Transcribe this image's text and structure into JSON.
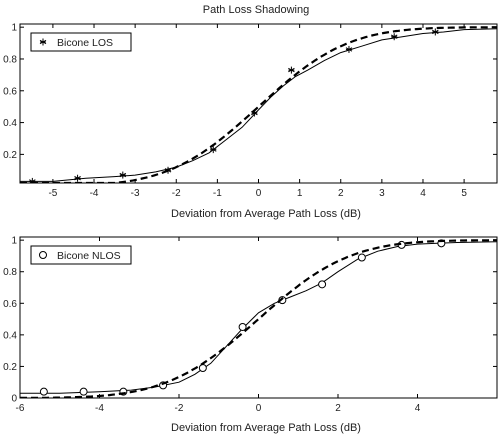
{
  "chart_data": [
    {
      "type": "line",
      "title": "Path Loss Shadowing",
      "xlabel": "Deviation from Average Path Loss (dB)",
      "ylabel": "",
      "xlim": [
        -5.8,
        5.8
      ],
      "ylim": [
        0.02,
        1.02
      ],
      "xticks": [
        -5,
        -4,
        -3,
        -2,
        -1,
        0,
        1,
        2,
        3,
        4,
        5
      ],
      "yticks": [
        0.2,
        0.4,
        0.6,
        0.8,
        1
      ],
      "legend": {
        "position": "top-left",
        "entries": [
          {
            "label": "Bicone LOS",
            "marker": "asterisk"
          }
        ]
      },
      "grid": false,
      "series": [
        {
          "name": "Bicone LOS",
          "style": "solid-with-markers",
          "marker": "asterisk",
          "x": [
            -5.8,
            -5.0,
            -4.2,
            -3.5,
            -3.0,
            -2.5,
            -2.0,
            -1.6,
            -1.2,
            -0.8,
            -0.4,
            0.0,
            0.3,
            0.6,
            0.9,
            1.2,
            1.6,
            2.0,
            2.5,
            3.0,
            3.5,
            4.0,
            4.5,
            5.0,
            5.8
          ],
          "y": [
            0.03,
            0.03,
            0.05,
            0.06,
            0.07,
            0.09,
            0.12,
            0.16,
            0.21,
            0.29,
            0.37,
            0.48,
            0.56,
            0.63,
            0.69,
            0.73,
            0.79,
            0.84,
            0.88,
            0.92,
            0.94,
            0.96,
            0.97,
            0.985,
            0.99
          ],
          "markers_x": [
            -5.5,
            -4.4,
            -3.3,
            -2.2,
            -1.1,
            -0.1,
            0.8,
            2.2,
            3.3,
            4.3
          ],
          "markers_y": [
            0.03,
            0.05,
            0.07,
            0.1,
            0.23,
            0.46,
            0.73,
            0.86,
            0.94,
            0.97
          ]
        },
        {
          "name": "",
          "style": "dashed",
          "type": "gaussian-cdf",
          "mean": 0,
          "sigma": 1.7
        }
      ]
    },
    {
      "type": "line",
      "title": "",
      "xlabel": "Deviation from Average Path Loss (dB)",
      "ylabel": "",
      "xlim": [
        -6,
        6
      ],
      "ylim": [
        0,
        1.02
      ],
      "xticks": [
        -6,
        -4,
        -2,
        0,
        2,
        4
      ],
      "yticks": [
        0,
        0.2,
        0.4,
        0.6,
        0.8,
        1
      ],
      "legend": {
        "position": "top-left",
        "entries": [
          {
            "label": "Bicone NLOS",
            "marker": "circle"
          }
        ]
      },
      "grid": false,
      "series": [
        {
          "name": "Bicone NLOS",
          "style": "solid-with-markers",
          "marker": "circle",
          "x": [
            -6.0,
            -5.0,
            -4.0,
            -3.2,
            -2.6,
            -2.0,
            -1.6,
            -1.2,
            -0.8,
            -0.4,
            0.0,
            0.4,
            0.8,
            1.2,
            1.6,
            2.0,
            2.5,
            3.0,
            3.5,
            4.0,
            4.5,
            5.0,
            6.0
          ],
          "y": [
            0.03,
            0.03,
            0.04,
            0.05,
            0.07,
            0.1,
            0.15,
            0.22,
            0.33,
            0.44,
            0.54,
            0.6,
            0.64,
            0.68,
            0.73,
            0.8,
            0.88,
            0.93,
            0.96,
            0.975,
            0.98,
            0.985,
            0.99
          ],
          "markers_x": [
            -5.4,
            -4.4,
            -3.4,
            -2.4,
            -1.4,
            -0.4,
            0.6,
            1.6,
            2.6,
            3.6,
            4.6
          ],
          "markers_y": [
            0.04,
            0.04,
            0.04,
            0.08,
            0.19,
            0.45,
            0.62,
            0.72,
            0.89,
            0.97,
            0.98
          ]
        },
        {
          "name": "",
          "style": "dashed",
          "type": "gaussian-cdf",
          "mean": 0,
          "sigma": 1.8
        }
      ]
    }
  ]
}
